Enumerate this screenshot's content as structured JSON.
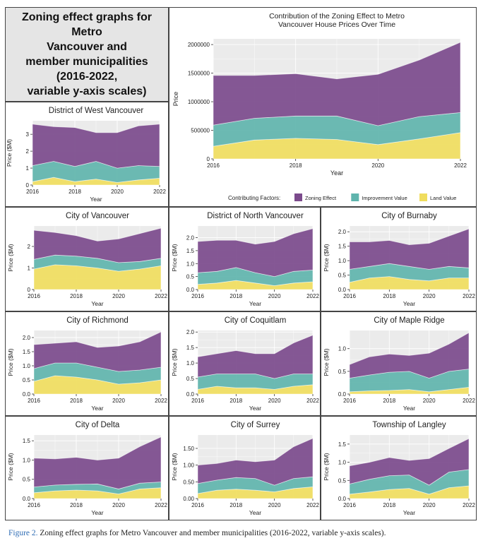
{
  "page_title": "Zoning effect graphs for Metro\nVancouver and\nmember municipalities\n(2016-2022,\nvariable y-axis scales)",
  "caption": {
    "label": "Figure 2.",
    "text": "Zoning effect graphs for Metro Vancouver and member municipalities (2016-2022, variable y-axis scales)."
  },
  "legend": {
    "title": "Contributing Factors:",
    "items": [
      {
        "label": "Zoning Effect",
        "color": "#7b4a8c"
      },
      {
        "label": "Improvement Value",
        "color": "#5fb4ad"
      },
      {
        "label": "Land Value",
        "color": "#f0dd5e"
      }
    ]
  },
  "colors": {
    "zoning": "#7b4a8c",
    "improvement": "#5fb4ad",
    "land": "#f0dd5e",
    "panel_bg": "#ebebeb",
    "grid": "#ffffff"
  },
  "chart_data": [
    {
      "id": "metro",
      "type": "area",
      "stacked": true,
      "title": "Contribution of the Zoning Effect to Metro\nVancouver House Prices Over Time",
      "xlabel": "Year",
      "ylabel": "Price",
      "x": [
        2016,
        2017,
        2018,
        2019,
        2020,
        2021,
        2022
      ],
      "xticks": [
        2016,
        2018,
        2020,
        2022
      ],
      "ylim": [
        0,
        2100000
      ],
      "yticks": [
        0,
        500000,
        1000000,
        1500000,
        2000000
      ],
      "ytick_labels": [
        "0",
        "500000",
        "1000000",
        "1500000",
        "2000000"
      ],
      "series": [
        {
          "name": "Land Value",
          "values": [
            220000,
            330000,
            360000,
            340000,
            250000,
            350000,
            460000
          ]
        },
        {
          "name": "Improvement Value",
          "values": [
            370000,
            380000,
            390000,
            410000,
            330000,
            390000,
            350000
          ]
        },
        {
          "name": "Zoning Effect",
          "values": [
            870000,
            750000,
            740000,
            650000,
            900000,
            990000,
            1230000
          ]
        }
      ]
    },
    {
      "id": "west-vancouver",
      "type": "area",
      "stacked": true,
      "title": "District of West Vancouver",
      "xlabel": "Year",
      "ylabel": "Price ($M)",
      "x": [
        2016,
        2017,
        2018,
        2019,
        2020,
        2021,
        2022
      ],
      "xticks": [
        2016,
        2018,
        2020,
        2022
      ],
      "ylim": [
        0,
        3.8
      ],
      "yticks": [
        0,
        1,
        2,
        3
      ],
      "ytick_labels": [
        "0",
        "1",
        "2",
        "3"
      ],
      "series": [
        {
          "name": "Land Value",
          "values": [
            0.2,
            0.45,
            0.2,
            0.35,
            0.15,
            0.3,
            0.4
          ]
        },
        {
          "name": "Improvement Value",
          "values": [
            0.95,
            0.95,
            0.9,
            1.05,
            0.85,
            0.85,
            0.7
          ]
        },
        {
          "name": "Zoning Effect",
          "values": [
            2.45,
            2.05,
            2.3,
            1.7,
            2.1,
            2.35,
            2.5
          ]
        }
      ]
    },
    {
      "id": "vancouver",
      "type": "area",
      "stacked": true,
      "title": "City of Vancouver",
      "xlabel": "Year",
      "ylabel": "Price ($M)",
      "x": [
        2016,
        2017,
        2018,
        2019,
        2020,
        2021,
        2022
      ],
      "xticks": [
        2016,
        2018,
        2020,
        2022
      ],
      "ylim": [
        0,
        2.95
      ],
      "yticks": [
        0,
        1,
        2
      ],
      "ytick_labels": [
        "0",
        "1",
        "2"
      ],
      "series": [
        {
          "name": "Land Value",
          "values": [
            0.95,
            1.15,
            1.1,
            1.0,
            0.85,
            0.95,
            1.1
          ]
        },
        {
          "name": "Improvement Value",
          "values": [
            0.45,
            0.45,
            0.45,
            0.45,
            0.4,
            0.35,
            0.35
          ]
        },
        {
          "name": "Zoning Effect",
          "values": [
            1.35,
            1.05,
            0.95,
            0.8,
            1.1,
            1.3,
            1.4
          ]
        }
      ]
    },
    {
      "id": "north-vancouver",
      "type": "area",
      "stacked": true,
      "title": "District of North Vancouver",
      "xlabel": "Year",
      "ylabel": "Price ($M)",
      "x": [
        2016,
        2017,
        2018,
        2019,
        2020,
        2021,
        2022
      ],
      "xticks": [
        2016,
        2018,
        2020,
        2022
      ],
      "ylim": [
        0,
        2.45
      ],
      "yticks": [
        0,
        0.5,
        1.0,
        1.5,
        2.0
      ],
      "ytick_labels": [
        "0.0",
        "0.5",
        "1.0",
        "1.5",
        "2.0"
      ],
      "series": [
        {
          "name": "Land Value",
          "values": [
            0.2,
            0.25,
            0.35,
            0.25,
            0.15,
            0.25,
            0.3
          ]
        },
        {
          "name": "Improvement Value",
          "values": [
            0.45,
            0.45,
            0.5,
            0.4,
            0.35,
            0.45,
            0.45
          ]
        },
        {
          "name": "Zoning Effect",
          "values": [
            1.2,
            1.2,
            1.05,
            1.1,
            1.35,
            1.45,
            1.6
          ]
        }
      ]
    },
    {
      "id": "burnaby",
      "type": "area",
      "stacked": true,
      "title": "City of Burnaby",
      "xlabel": "Year",
      "ylabel": "Price ($M)",
      "x": [
        2016,
        2017,
        2018,
        2019,
        2020,
        2021,
        2022
      ],
      "xticks": [
        2016,
        2018,
        2020,
        2022
      ],
      "ylim": [
        0,
        2.2
      ],
      "yticks": [
        0,
        0.5,
        1.0,
        1.5,
        2.0
      ],
      "ytick_labels": [
        "0.0",
        "0.5",
        "1.0",
        "1.5",
        "2.0"
      ],
      "series": [
        {
          "name": "Land Value",
          "values": [
            0.25,
            0.4,
            0.45,
            0.35,
            0.3,
            0.4,
            0.4
          ]
        },
        {
          "name": "Improvement Value",
          "values": [
            0.45,
            0.4,
            0.45,
            0.45,
            0.4,
            0.4,
            0.35
          ]
        },
        {
          "name": "Zoning Effect",
          "values": [
            0.95,
            0.85,
            0.8,
            0.75,
            0.9,
            1.05,
            1.35
          ]
        }
      ]
    },
    {
      "id": "richmond",
      "type": "area",
      "stacked": true,
      "title": "City of Richmond",
      "xlabel": "Year",
      "ylabel": "Price ($M)",
      "x": [
        2016,
        2017,
        2018,
        2019,
        2020,
        2021,
        2022
      ],
      "xticks": [
        2016,
        2018,
        2020,
        2022
      ],
      "ylim": [
        0,
        2.25
      ],
      "yticks": [
        0,
        0.5,
        1.0,
        1.5,
        2.0
      ],
      "ytick_labels": [
        "0.0",
        "0.5",
        "1.0",
        "1.5",
        "2.0"
      ],
      "series": [
        {
          "name": "Land Value",
          "values": [
            0.45,
            0.65,
            0.6,
            0.5,
            0.35,
            0.4,
            0.5
          ]
        },
        {
          "name": "Improvement Value",
          "values": [
            0.45,
            0.45,
            0.5,
            0.45,
            0.45,
            0.45,
            0.45
          ]
        },
        {
          "name": "Zoning Effect",
          "values": [
            0.85,
            0.7,
            0.75,
            0.7,
            0.9,
            1.0,
            1.25
          ]
        }
      ]
    },
    {
      "id": "coquitlam",
      "type": "area",
      "stacked": true,
      "title": "City of Coquitlam",
      "xlabel": "Year",
      "ylabel": "Price ($M)",
      "x": [
        2016,
        2017,
        2018,
        2019,
        2020,
        2021,
        2022
      ],
      "xticks": [
        2016,
        2018,
        2020,
        2022
      ],
      "ylim": [
        0,
        2.05
      ],
      "yticks": [
        0,
        0.5,
        1.0,
        1.5,
        2.0
      ],
      "ytick_labels": [
        "0.0",
        "0.5",
        "1.0",
        "1.5",
        "2.0"
      ],
      "series": [
        {
          "name": "Land Value",
          "values": [
            0.15,
            0.25,
            0.2,
            0.2,
            0.15,
            0.25,
            0.3
          ]
        },
        {
          "name": "Improvement Value",
          "values": [
            0.4,
            0.4,
            0.45,
            0.45,
            0.35,
            0.4,
            0.35
          ]
        },
        {
          "name": "Zoning Effect",
          "values": [
            0.65,
            0.65,
            0.75,
            0.65,
            0.8,
            1.0,
            1.25
          ]
        }
      ]
    },
    {
      "id": "maple-ridge",
      "type": "area",
      "stacked": true,
      "title": "City of Maple Ridge",
      "xlabel": "Year",
      "ylabel": "Price ($M)",
      "x": [
        2016,
        2017,
        2018,
        2019,
        2020,
        2021,
        2022
      ],
      "xticks": [
        2016,
        2018,
        2020,
        2022
      ],
      "ylim": [
        0,
        1.4
      ],
      "yticks": [
        0,
        0.5,
        1.0
      ],
      "ytick_labels": [
        "0.0",
        "0.5",
        "1.0"
      ],
      "series": [
        {
          "name": "Land Value",
          "values": [
            0.05,
            0.07,
            0.08,
            0.1,
            0.05,
            0.1,
            0.15
          ]
        },
        {
          "name": "Improvement Value",
          "values": [
            0.3,
            0.35,
            0.4,
            0.4,
            0.3,
            0.4,
            0.4
          ]
        },
        {
          "name": "Zoning Effect",
          "values": [
            0.3,
            0.4,
            0.4,
            0.35,
            0.55,
            0.6,
            0.8
          ]
        }
      ]
    },
    {
      "id": "delta",
      "type": "area",
      "stacked": true,
      "title": "City of Delta",
      "xlabel": "Year",
      "ylabel": "Price ($M)",
      "x": [
        2016,
        2017,
        2018,
        2019,
        2020,
        2021,
        2022
      ],
      "xticks": [
        2016,
        2018,
        2020,
        2022
      ],
      "ylim": [
        0,
        1.65
      ],
      "yticks": [
        0,
        0.5,
        1.0,
        1.5
      ],
      "ytick_labels": [
        "0.0",
        "0.5",
        "1.0",
        "1.5"
      ],
      "series": [
        {
          "name": "Land Value",
          "values": [
            0.15,
            0.2,
            0.22,
            0.2,
            0.12,
            0.25,
            0.28
          ]
        },
        {
          "name": "Improvement Value",
          "values": [
            0.15,
            0.15,
            0.15,
            0.18,
            0.13,
            0.15,
            0.15
          ]
        },
        {
          "name": "Zoning Effect",
          "values": [
            0.75,
            0.68,
            0.7,
            0.62,
            0.8,
            0.95,
            1.17
          ]
        }
      ]
    },
    {
      "id": "surrey",
      "type": "area",
      "stacked": true,
      "title": "City of Surrey",
      "xlabel": "Year",
      "ylabel": "Price ($M)",
      "x": [
        2016,
        2017,
        2018,
        2019,
        2020,
        2021,
        2022
      ],
      "xticks": [
        2016,
        2018,
        2020,
        2022
      ],
      "ylim": [
        0,
        1.9
      ],
      "yticks": [
        0,
        0.5,
        1.0,
        1.5
      ],
      "ytick_labels": [
        "0.00",
        "0.50",
        "1.00",
        "1.50"
      ],
      "series": [
        {
          "name": "Land Value",
          "values": [
            0.15,
            0.25,
            0.28,
            0.25,
            0.2,
            0.3,
            0.35
          ]
        },
        {
          "name": "Improvement Value",
          "values": [
            0.3,
            0.3,
            0.35,
            0.35,
            0.2,
            0.3,
            0.3
          ]
        },
        {
          "name": "Zoning Effect",
          "values": [
            0.55,
            0.5,
            0.52,
            0.5,
            0.75,
            0.95,
            1.15
          ]
        }
      ]
    },
    {
      "id": "langley",
      "type": "area",
      "stacked": true,
      "title": "Township of Langley",
      "xlabel": "Year",
      "ylabel": "Price ($M)",
      "x": [
        2016,
        2017,
        2018,
        2019,
        2020,
        2021,
        2022
      ],
      "xticks": [
        2016,
        2018,
        2020,
        2022
      ],
      "ylim": [
        0,
        1.75
      ],
      "yticks": [
        0,
        0.5,
        1.0,
        1.5
      ],
      "ytick_labels": [
        "0.0",
        "0.5",
        "1.0",
        "1.5"
      ],
      "series": [
        {
          "name": "Land Value",
          "values": [
            0.12,
            0.18,
            0.25,
            0.28,
            0.12,
            0.3,
            0.35
          ]
        },
        {
          "name": "Improvement Value",
          "values": [
            0.28,
            0.35,
            0.38,
            0.37,
            0.25,
            0.43,
            0.45
          ]
        },
        {
          "name": "Zoning Effect",
          "values": [
            0.5,
            0.47,
            0.5,
            0.4,
            0.73,
            0.65,
            0.85
          ]
        }
      ]
    }
  ]
}
